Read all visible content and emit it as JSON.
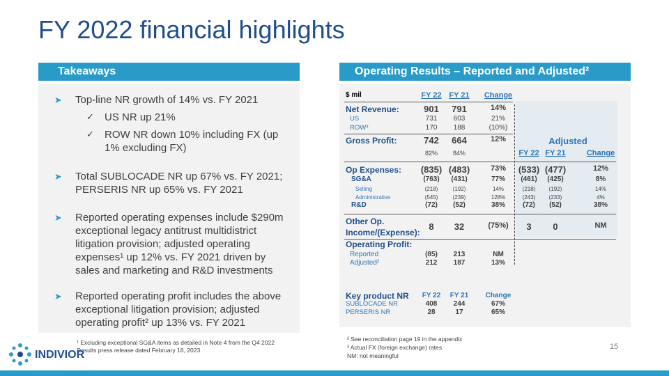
{
  "title": "FY 2022 financial highlights",
  "takeaways": {
    "header": "Takeaways",
    "bullets": [
      {
        "text": "Top-line NR growth of 14% vs. FY 2021",
        "subs": [
          "US NR up 21%",
          "ROW NR down 10% including FX (up 1% excluding FX)"
        ]
      },
      {
        "text": "Total SUBLOCADE NR up 67% vs. FY 2021; PERSERIS NR up 65% vs. FY 2021"
      },
      {
        "text": "Reported operating expenses include $290m exceptional legacy antitrust multidistrict litigation provision; adjusted operating expenses¹ up 12% vs. FY 2021 driven by sales and marketing and R&D investments"
      },
      {
        "text": "Reported operating profit includes the above exceptional litigation provision; adjusted operating profit² up 13% vs. FY 2021"
      }
    ],
    "footnote": "¹ Excluding exceptional SG&A items as detailed in Note 4 from the Q4 2022 Results press release dated February 16, 2023"
  },
  "results": {
    "header": "Operating Results – Reported and Adjusted²",
    "columns": {
      "unit": "$ mil",
      "fy22": "FY 22",
      "fy21": "FY 21",
      "change": "Change"
    },
    "adjusted_columns": {
      "title": "Adjusted",
      "fy22": "FY 22",
      "fy21": "FY 21",
      "change": "Change"
    },
    "rows": [
      {
        "label": "Net Revenue:",
        "fy22": "901",
        "fy21": "791",
        "change": "14%"
      },
      {
        "label": "US",
        "fy22": "731",
        "fy21": "603",
        "change": "21%"
      },
      {
        "label": "ROW³",
        "fy22": "170",
        "fy21": "188",
        "change": "(10%)"
      },
      {
        "label": "Gross Profit:",
        "fy22": "742",
        "fy21": "664",
        "change": "12%"
      },
      {
        "fy22": "82%",
        "fy21": "84%"
      },
      {
        "label": "Op Expenses:",
        "fy22": "(835)",
        "fy21": "(483)",
        "change": "73%",
        "adj_fy22": "(533)",
        "adj_fy21": "(477)",
        "adj_change": "12%"
      },
      {
        "label": "SG&A",
        "fy22": "(763)",
        "fy21": "(431)",
        "change": "77%",
        "adj_fy22": "(461)",
        "adj_fy21": "(425)",
        "adj_change": "8%"
      },
      {
        "label": "Selling",
        "fy22": "(218)",
        "fy21": "(192)",
        "change": "14%",
        "adj_fy22": "(218)",
        "adj_fy21": "(192)",
        "adj_change": "14%"
      },
      {
        "label": "Administrative",
        "fy22": "(545)",
        "fy21": "(239)",
        "change": "128%",
        "adj_fy22": "(243)",
        "adj_fy21": "(233)",
        "adj_change": "4%"
      },
      {
        "label": "R&D",
        "fy22": "(72)",
        "fy21": "(52)",
        "change": "38%",
        "adj_fy22": "(72)",
        "adj_fy21": "(52)",
        "adj_change": "38%"
      },
      {
        "label": "Other Op. Income/(Expense):",
        "fy22": "8",
        "fy21": "32",
        "change": "(75%)",
        "adj_fy22": "3",
        "adj_fy21": "0",
        "adj_change": "NM"
      },
      {
        "label": "Operating Profit:"
      },
      {
        "label": "Reported",
        "fy22": "(85)",
        "fy21": "213",
        "change": "NM"
      },
      {
        "label": "Adjusted²",
        "fy22": "212",
        "fy21": "187",
        "change": "13%"
      }
    ],
    "key_product": {
      "label": "Key product NR",
      "fy22": "FY 22",
      "fy21": "FY 21",
      "change": "Change",
      "rows": [
        {
          "label": "SUBLOCADE NR",
          "fy22": "408",
          "fy21": "244",
          "change": "67%"
        },
        {
          "label": "PERSERIS NR",
          "fy22": "28",
          "fy21": "17",
          "change": "65%"
        }
      ]
    },
    "footnotes": [
      "² See reconciliation page 19 in the appendix",
      "³ Actual FX (foreign exchange) rates",
      "NM: not meaningful"
    ]
  },
  "logo": "INDIVIOR",
  "page_number": "15"
}
